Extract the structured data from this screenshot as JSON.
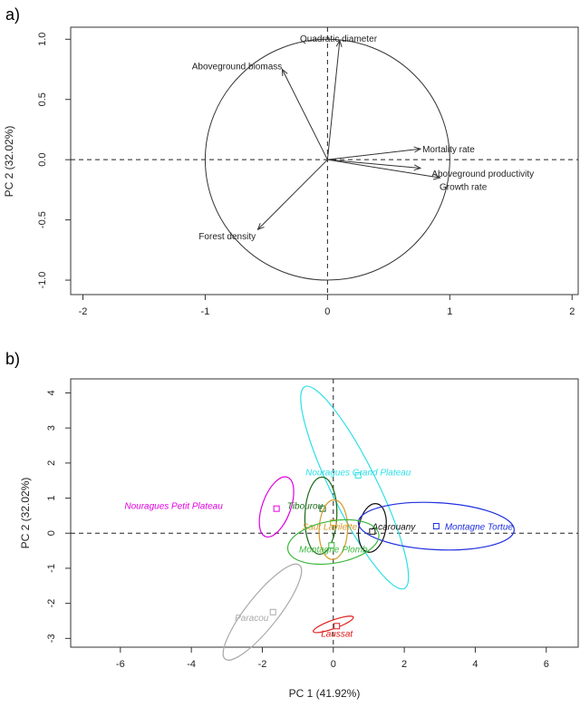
{
  "chart_data": [
    {
      "panel_label": "a)",
      "type": "biplot",
      "ylabel": "PC 2 (32.02%)",
      "xlim": [
        -2.1,
        2.05
      ],
      "ylim": [
        -1.12,
        1.1
      ],
      "xticks": [
        -2,
        -1,
        0,
        1,
        2
      ],
      "yticks": [
        -1.0,
        -0.5,
        0.0,
        0.5,
        1.0
      ],
      "ytick_labels": [
        "-1.0",
        "-0.5",
        "0.0",
        "0.5",
        "1.0"
      ],
      "reference_lines": {
        "x": 0,
        "y": 0,
        "style": "dashed"
      },
      "unit_circle": true,
      "vectors": [
        {
          "label": "Quadratic diameter",
          "x": 0.1,
          "y": 0.99,
          "label_x": 0.09,
          "label_y": 1.01
        },
        {
          "label": "Aboveground biomass",
          "x": -0.37,
          "y": 0.75,
          "label_x": -0.74,
          "label_y": 0.78
        },
        {
          "label": "Mortality rate",
          "x": 0.76,
          "y": 0.09,
          "label_x": 0.99,
          "label_y": 0.09
        },
        {
          "label": "Aboveground productivity",
          "x": 0.76,
          "y": -0.07,
          "label_x": 1.27,
          "label_y": -0.11
        },
        {
          "label": "Growth rate",
          "x": 0.92,
          "y": -0.15,
          "label_x": 1.11,
          "label_y": -0.22
        },
        {
          "label": "Forest density",
          "x": -0.57,
          "y": -0.58,
          "label_x": -0.82,
          "label_y": -0.63
        }
      ]
    },
    {
      "panel_label": "b)",
      "type": "scatter",
      "xlabel": "PC 1 (41.92%)",
      "ylabel": "PC 2 (32.02%)",
      "xlim": [
        -7.4,
        6.9
      ],
      "ylim": [
        -3.25,
        4.4
      ],
      "xticks": [
        -6,
        -4,
        -2,
        0,
        2,
        4,
        6
      ],
      "yticks": [
        -3,
        -2,
        -1,
        0,
        1,
        2,
        3,
        4
      ],
      "reference_lines": {
        "x": 0,
        "y": 0,
        "style": "dashed"
      },
      "sites": [
        {
          "name": "Nouragues Grand Plateau",
          "color": "#2ee0e8",
          "x": 0.7,
          "y": 1.65,
          "ellipse": {
            "cx": 0.6,
            "cy": 1.3,
            "a": 3.2,
            "b": 0.65,
            "angle": -64
          },
          "label_x": 0.7,
          "label_y": 1.75
        },
        {
          "name": "Nouragues Petit Plateau",
          "color": "#e000e0",
          "x": -1.6,
          "y": 0.7,
          "ellipse": {
            "cx": -1.6,
            "cy": 0.75,
            "a": 0.9,
            "b": 0.4,
            "angle": 70
          },
          "label_x": -4.5,
          "label_y": 0.8
        },
        {
          "name": "Tibourou",
          "color": "#1a6b1a",
          "x": -0.3,
          "y": 0.7,
          "ellipse": {
            "cx": -0.35,
            "cy": 0.5,
            "a": 1.1,
            "b": 0.45,
            "angle": 88
          },
          "label_x": -0.8,
          "label_y": 0.8
        },
        {
          "name": "Saut Lavilette",
          "color": "#d49a2a",
          "x": 0.0,
          "y": 0.3,
          "ellipse": {
            "cx": 0.0,
            "cy": 0.1,
            "a": 0.85,
            "b": 0.4,
            "angle": 88
          },
          "label_x": -0.1,
          "label_y": 0.2
        },
        {
          "name": "Acarouany",
          "color": "#111111",
          "x": 1.1,
          "y": 0.05,
          "ellipse": {
            "cx": 1.1,
            "cy": 0.15,
            "a": 0.7,
            "b": 0.38,
            "angle": 80
          },
          "label_x": 1.7,
          "label_y": 0.2
        },
        {
          "name": "Montagne Tortue",
          "color": "#1f2fe0",
          "x": 2.9,
          "y": 0.2,
          "ellipse": {
            "cx": 2.9,
            "cy": 0.2,
            "a": 2.2,
            "b": 0.67,
            "angle": -3
          },
          "label_x": 4.1,
          "label_y": 0.2
        },
        {
          "name": "Montagne Plomb",
          "color": "#3db83d",
          "x": -0.05,
          "y": -0.35,
          "ellipse": {
            "cx": 0.0,
            "cy": -0.25,
            "a": 1.3,
            "b": 0.6,
            "angle": 10
          },
          "label_x": 0.0,
          "label_y": -0.45
        },
        {
          "name": "Paracou",
          "color": "#aaaaaa",
          "x": -1.7,
          "y": -2.25,
          "ellipse": {
            "cx": -2.0,
            "cy": -2.25,
            "a": 1.7,
            "b": 0.45,
            "angle": 52
          },
          "label_x": -2.3,
          "label_y": -2.4
        },
        {
          "name": "Laussat",
          "color": "#e01a1a",
          "x": 0.1,
          "y": -2.65,
          "ellipse": {
            "cx": 0.0,
            "cy": -2.6,
            "a": 0.6,
            "b": 0.12,
            "angle": 20
          },
          "label_x": 0.1,
          "label_y": -2.85
        }
      ]
    }
  ]
}
